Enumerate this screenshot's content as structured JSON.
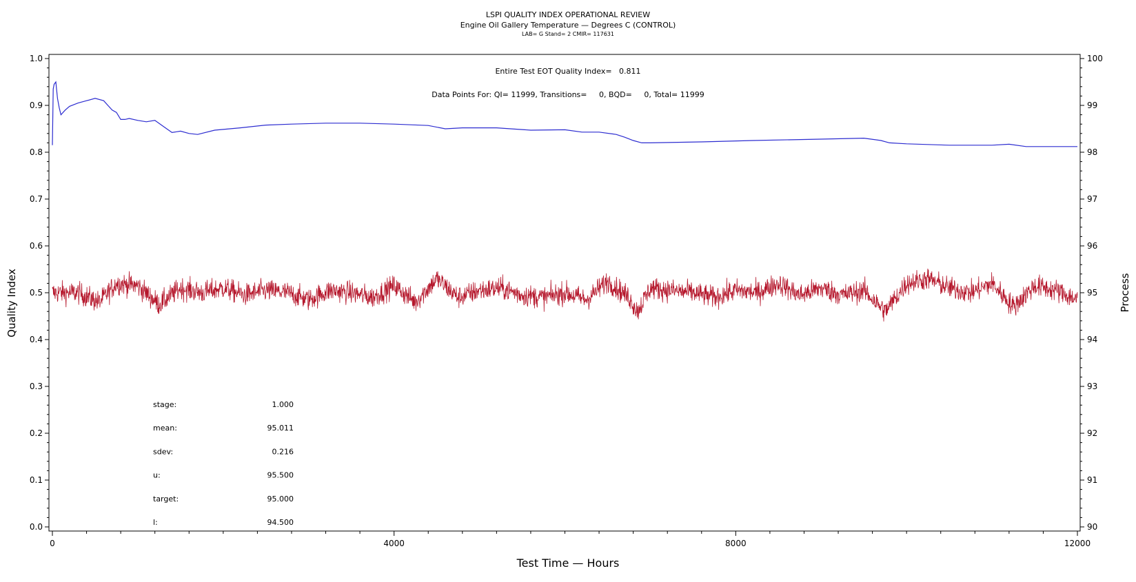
{
  "chart_data": {
    "type": "line",
    "title": "LSPI QUALITY INDEX OPERATIONAL REVIEW",
    "subtitle": "Engine Oil Gallery Temperature — Degrees C (CONTROL)",
    "subtitle2": "LAB= G Stand= 2 CMIR= 117631",
    "xlabel": "Test Time — Hours",
    "ylabel": "Quality Index",
    "y2label": "Process",
    "xlim": [
      0,
      12000
    ],
    "ylim": [
      0,
      1.0
    ],
    "y2lim": [
      90,
      100
    ],
    "x_ticks": [
      0,
      4000,
      8000,
      12000
    ],
    "x_tick_labels": [
      "0",
      "4000",
      "8000",
      "12000"
    ],
    "y_ticks": [
      0.0,
      0.1,
      0.2,
      0.3,
      0.4,
      0.5,
      0.6,
      0.7,
      0.8,
      0.9,
      1.0
    ],
    "y_tick_labels": [
      "0.0",
      "0.1",
      "0.2",
      "0.3",
      "0.4",
      "0.5",
      "0.6",
      "0.7",
      "0.8",
      "0.9",
      "1.0"
    ],
    "y2_ticks": [
      90,
      91,
      92,
      93,
      94,
      95,
      96,
      97,
      98,
      99,
      100
    ],
    "y2_tick_labels": [
      "90",
      "91",
      "92",
      "93",
      "94",
      "95",
      "96",
      "97",
      "98",
      "99",
      "100"
    ],
    "annotation_qi": "Entire Test EOT Quality Index=   0.811",
    "annotation_points": "Data Points For: QI= 11999, Transitions=     0, BQD=     0, Total= 11999",
    "stats": [
      {
        "label": "stage:",
        "value": "1.000"
      },
      {
        "label": "mean:",
        "value": "95.011"
      },
      {
        "label": "sdev:",
        "value": "0.216"
      },
      {
        "label": "u:",
        "value": "95.500"
      },
      {
        "label": "target:",
        "value": "95.000"
      },
      {
        "label": "l:",
        "value": "94.500"
      }
    ],
    "series": [
      {
        "axis": "left",
        "color": "#2b2bd0",
        "x": [
          0,
          10,
          20,
          40,
          60,
          80,
          100,
          150,
          200,
          300,
          400,
          500,
          600,
          650,
          700,
          750,
          800,
          850,
          900,
          1000,
          1100,
          1200,
          1300,
          1400,
          1500,
          1600,
          1700,
          1900,
          2200,
          2500,
          2800,
          3200,
          3600,
          4000,
          4400,
          4600,
          4800,
          5200,
          5600,
          6000,
          6200,
          6400,
          6600,
          6700,
          6800,
          6900,
          7000,
          7600,
          8200,
          9000,
          9500,
          9700,
          9800,
          10000,
          10500,
          11000,
          11200,
          11400,
          11600,
          12000
        ],
        "values": [
          0.815,
          0.935,
          0.945,
          0.95,
          0.915,
          0.895,
          0.88,
          0.89,
          0.898,
          0.905,
          0.91,
          0.915,
          0.91,
          0.9,
          0.89,
          0.885,
          0.87,
          0.87,
          0.872,
          0.868,
          0.865,
          0.868,
          0.855,
          0.842,
          0.845,
          0.84,
          0.838,
          0.847,
          0.852,
          0.858,
          0.86,
          0.862,
          0.862,
          0.86,
          0.857,
          0.85,
          0.852,
          0.852,
          0.847,
          0.848,
          0.843,
          0.843,
          0.838,
          0.832,
          0.825,
          0.82,
          0.82,
          0.822,
          0.825,
          0.828,
          0.83,
          0.825,
          0.82,
          0.818,
          0.815,
          0.815,
          0.817,
          0.812,
          0.812,
          0.812
        ]
      },
      {
        "axis": "right",
        "color": "#b5162b",
        "mean": 95.011,
        "sdev": 0.216,
        "x": [
          0,
          300,
          550,
          750,
          1000,
          1250,
          1500,
          1750,
          2000,
          2250,
          2500,
          2750,
          3000,
          3250,
          3500,
          3750,
          4000,
          4250,
          4500,
          4750,
          5000,
          5250,
          5500,
          5750,
          6000,
          6250,
          6500,
          6750,
          6850,
          7000,
          7250,
          7500,
          7750,
          8000,
          8250,
          8500,
          8750,
          9000,
          9250,
          9500,
          9750,
          10000,
          10250,
          10500,
          10750,
          11000,
          11250,
          11500,
          11750,
          12000
        ],
        "values": [
          95.0,
          95.0,
          94.8,
          95.2,
          95.15,
          94.75,
          95.1,
          95.0,
          95.1,
          94.95,
          95.05,
          95.0,
          94.85,
          95.05,
          95.0,
          94.9,
          95.15,
          94.8,
          95.3,
          94.9,
          95.05,
          95.1,
          94.95,
          94.9,
          95.0,
          94.85,
          95.25,
          94.9,
          94.6,
          95.1,
          95.05,
          95.0,
          94.9,
          95.05,
          95.0,
          95.2,
          94.95,
          95.1,
          94.95,
          95.05,
          94.6,
          95.2,
          95.3,
          95.1,
          95.0,
          95.2,
          94.7,
          95.15,
          95.05,
          94.85
        ]
      }
    ]
  }
}
